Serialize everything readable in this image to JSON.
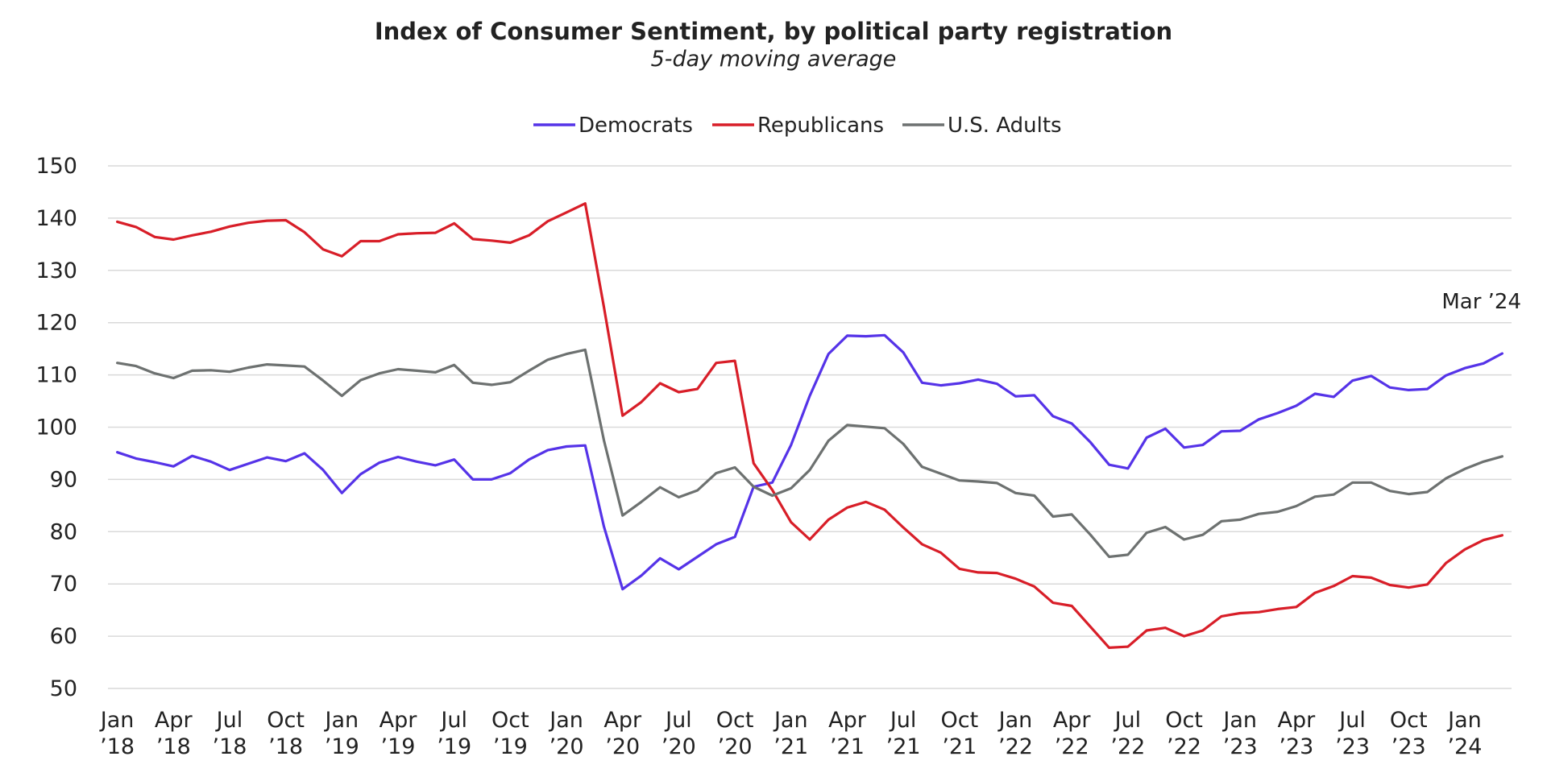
{
  "chart_data": {
    "type": "line",
    "title": "Index of Consumer Sentiment, by political party registration",
    "subtitle": "5-day moving average",
    "xlabel": "",
    "ylabel": "",
    "ylim": [
      50,
      150
    ],
    "yticks": [
      50,
      60,
      70,
      80,
      90,
      100,
      110,
      120,
      130,
      140,
      150
    ],
    "grid": true,
    "legend_position": "top-center",
    "x_start": "2018-01",
    "x_end": "2024-03",
    "xtick_labels": [
      {
        "index": 0,
        "line1": "Jan",
        "line2": "’18"
      },
      {
        "index": 3,
        "line1": "Apr",
        "line2": "’18"
      },
      {
        "index": 6,
        "line1": "Jul",
        "line2": "’18"
      },
      {
        "index": 9,
        "line1": "Oct",
        "line2": "’18"
      },
      {
        "index": 12,
        "line1": "Jan",
        "line2": "’19"
      },
      {
        "index": 15,
        "line1": "Apr",
        "line2": "’19"
      },
      {
        "index": 18,
        "line1": "Jul",
        "line2": "’19"
      },
      {
        "index": 21,
        "line1": "Oct",
        "line2": "’19"
      },
      {
        "index": 24,
        "line1": "Jan",
        "line2": "’20"
      },
      {
        "index": 27,
        "line1": "Apr",
        "line2": "’20"
      },
      {
        "index": 30,
        "line1": "Jul",
        "line2": "’20"
      },
      {
        "index": 33,
        "line1": "Oct",
        "line2": "’20"
      },
      {
        "index": 36,
        "line1": "Jan",
        "line2": "’21"
      },
      {
        "index": 39,
        "line1": "Apr",
        "line2": "’21"
      },
      {
        "index": 42,
        "line1": "Jul",
        "line2": "’21"
      },
      {
        "index": 45,
        "line1": "Oct",
        "line2": "’21"
      },
      {
        "index": 48,
        "line1": "Jan",
        "line2": "’22"
      },
      {
        "index": 51,
        "line1": "Apr",
        "line2": "’22"
      },
      {
        "index": 54,
        "line1": "Jul",
        "line2": "’22"
      },
      {
        "index": 57,
        "line1": "Oct",
        "line2": "’22"
      },
      {
        "index": 60,
        "line1": "Jan",
        "line2": "’23"
      },
      {
        "index": 63,
        "line1": "Apr",
        "line2": "’23"
      },
      {
        "index": 66,
        "line1": "Jul",
        "line2": "’23"
      },
      {
        "index": 69,
        "line1": "Oct",
        "line2": "’23"
      },
      {
        "index": 72,
        "line1": "Jan",
        "line2": "’24"
      }
    ],
    "annotation": "Mar ’24",
    "series": [
      {
        "name": "Democrats",
        "color": "#5533e8",
        "values": [
          95.2,
          94.0,
          93.3,
          92.5,
          94.5,
          93.4,
          91.8,
          93.0,
          94.2,
          93.5,
          95.0,
          91.8,
          87.4,
          91.0,
          93.2,
          94.3,
          93.4,
          92.7,
          93.8,
          90.0,
          90.0,
          91.2,
          93.8,
          95.6,
          96.3,
          96.5,
          81.0,
          69.0,
          71.6,
          74.9,
          72.8,
          75.2,
          77.6,
          79.0,
          88.6,
          89.4,
          96.6,
          106.0,
          114.0,
          117.5,
          117.4,
          117.6,
          114.3,
          108.5,
          108.0,
          108.4,
          109.1,
          108.3,
          105.9,
          106.1,
          102.1,
          100.7,
          97.1,
          92.8,
          92.1,
          98.0,
          99.7,
          96.1,
          96.6,
          99.2,
          99.3,
          101.5,
          102.7,
          104.1,
          106.4,
          105.8,
          108.9,
          109.8,
          107.6,
          107.1,
          107.3,
          109.9,
          111.3,
          112.2,
          114.1
        ]
      },
      {
        "name": "Republicans",
        "color": "#d81e28",
        "values": [
          139.3,
          138.3,
          136.4,
          135.9,
          136.7,
          137.4,
          138.4,
          139.1,
          139.5,
          139.6,
          137.3,
          134.0,
          132.7,
          135.6,
          135.6,
          136.9,
          137.1,
          137.2,
          139.0,
          136.0,
          135.7,
          135.3,
          136.7,
          139.4,
          141.1,
          142.8,
          123.0,
          102.2,
          104.8,
          108.4,
          106.7,
          107.3,
          112.3,
          112.7,
          93.1,
          88.0,
          81.8,
          78.5,
          82.3,
          84.6,
          85.7,
          84.2,
          80.8,
          77.6,
          76.0,
          72.9,
          72.2,
          72.1,
          71.0,
          69.5,
          66.4,
          65.8,
          61.8,
          57.8,
          58.0,
          61.1,
          61.6,
          60.0,
          61.1,
          63.8,
          64.4,
          64.6,
          65.2,
          65.6,
          68.3,
          69.6,
          71.5,
          71.2,
          69.8,
          69.3,
          69.9,
          74.0,
          76.6,
          78.4,
          79.3
        ]
      },
      {
        "name": "U.S. Adults",
        "color": "#6d7170",
        "values": [
          112.3,
          111.7,
          110.3,
          109.4,
          110.8,
          110.9,
          110.6,
          111.4,
          112.0,
          111.8,
          111.6,
          108.9,
          106.0,
          109.0,
          110.3,
          111.1,
          110.8,
          110.5,
          111.9,
          108.5,
          108.1,
          108.6,
          110.8,
          112.9,
          114.0,
          114.8,
          97.5,
          83.1,
          85.7,
          88.5,
          86.6,
          87.9,
          91.2,
          92.3,
          88.6,
          86.9,
          88.3,
          91.8,
          97.4,
          100.4,
          100.1,
          99.8,
          96.8,
          92.4,
          91.1,
          89.8,
          89.6,
          89.3,
          87.4,
          86.9,
          82.9,
          83.3,
          79.4,
          75.2,
          75.6,
          79.8,
          80.9,
          78.5,
          79.4,
          82.0,
          82.3,
          83.4,
          83.8,
          84.9,
          86.7,
          87.1,
          89.4,
          89.4,
          87.8,
          87.2,
          87.6,
          90.2,
          92.0,
          93.4,
          94.4
        ]
      }
    ]
  }
}
